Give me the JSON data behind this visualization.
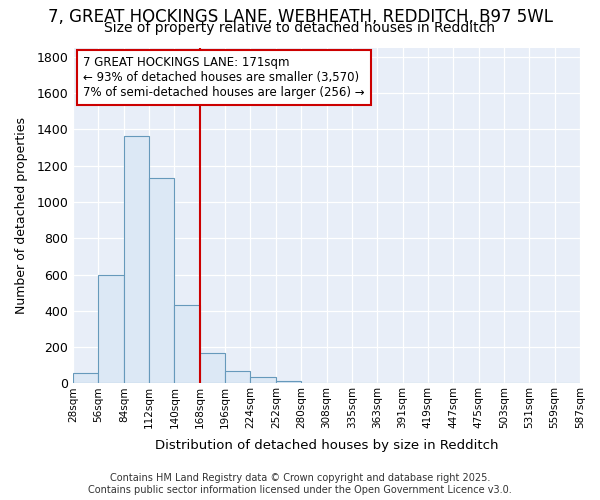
{
  "title_line1": "7, GREAT HOCKINGS LANE, WEBHEATH, REDDITCH, B97 5WL",
  "title_line2": "Size of property relative to detached houses in Redditch",
  "xlabel": "Distribution of detached houses by size in Redditch",
  "ylabel": "Number of detached properties",
  "bin_labels": [
    "28sqm",
    "56sqm",
    "84sqm",
    "112sqm",
    "140sqm",
    "168sqm",
    "196sqm",
    "224sqm",
    "252sqm",
    "280sqm",
    "308sqm",
    "335sqm",
    "363sqm",
    "391sqm",
    "419sqm",
    "447sqm",
    "475sqm",
    "503sqm",
    "531sqm",
    "559sqm",
    "587sqm"
  ],
  "bar_values": [
    56,
    600,
    1360,
    1130,
    430,
    170,
    70,
    35,
    15,
    0,
    0,
    0,
    0,
    0,
    0,
    0,
    0,
    0,
    0,
    0
  ],
  "bar_color": "#dce8f5",
  "bar_edge_color": "#6699bb",
  "property_line_x": 5,
  "property_line_color": "#cc0000",
  "annotation_text": "7 GREAT HOCKINGS LANE: 171sqm\n← 93% of detached houses are smaller (3,570)\n7% of semi-detached houses are larger (256) →",
  "annotation_box_color": "#ffffff",
  "annotation_box_edge": "#cc0000",
  "ylim": [
    0,
    1850
  ],
  "yticks": [
    0,
    200,
    400,
    600,
    800,
    1000,
    1200,
    1400,
    1600,
    1800
  ],
  "plot_bg_color": "#e8eef8",
  "fig_bg_color": "#ffffff",
  "footer_text": "Contains HM Land Registry data © Crown copyright and database right 2025.\nContains public sector information licensed under the Open Government Licence v3.0.",
  "title_fontsize": 12,
  "subtitle_fontsize": 10,
  "annot_fontsize": 8.5
}
